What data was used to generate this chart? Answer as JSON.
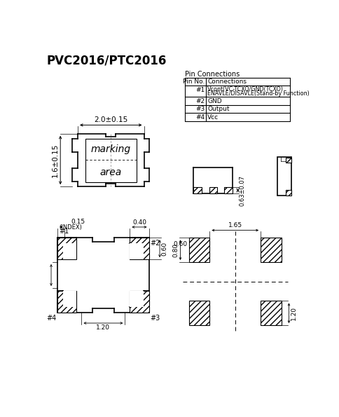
{
  "title": "PVC2016/PTC2016",
  "bg_color": "#ffffff",
  "dim_top_width": "2.0±0.15",
  "dim_left_height": "1.6±0.15",
  "dim_side_height": "0.63±0.07",
  "dim_bot_pad": "0.15",
  "dim_bot_pad2": "0.40",
  "dim_bot_height": "0.60",
  "dim_bot_center": "1.20",
  "dim_right_width": "0.60",
  "dim_right_center": "1.65",
  "dim_right_height1": "0.80",
  "dim_right_height2": "1.20"
}
